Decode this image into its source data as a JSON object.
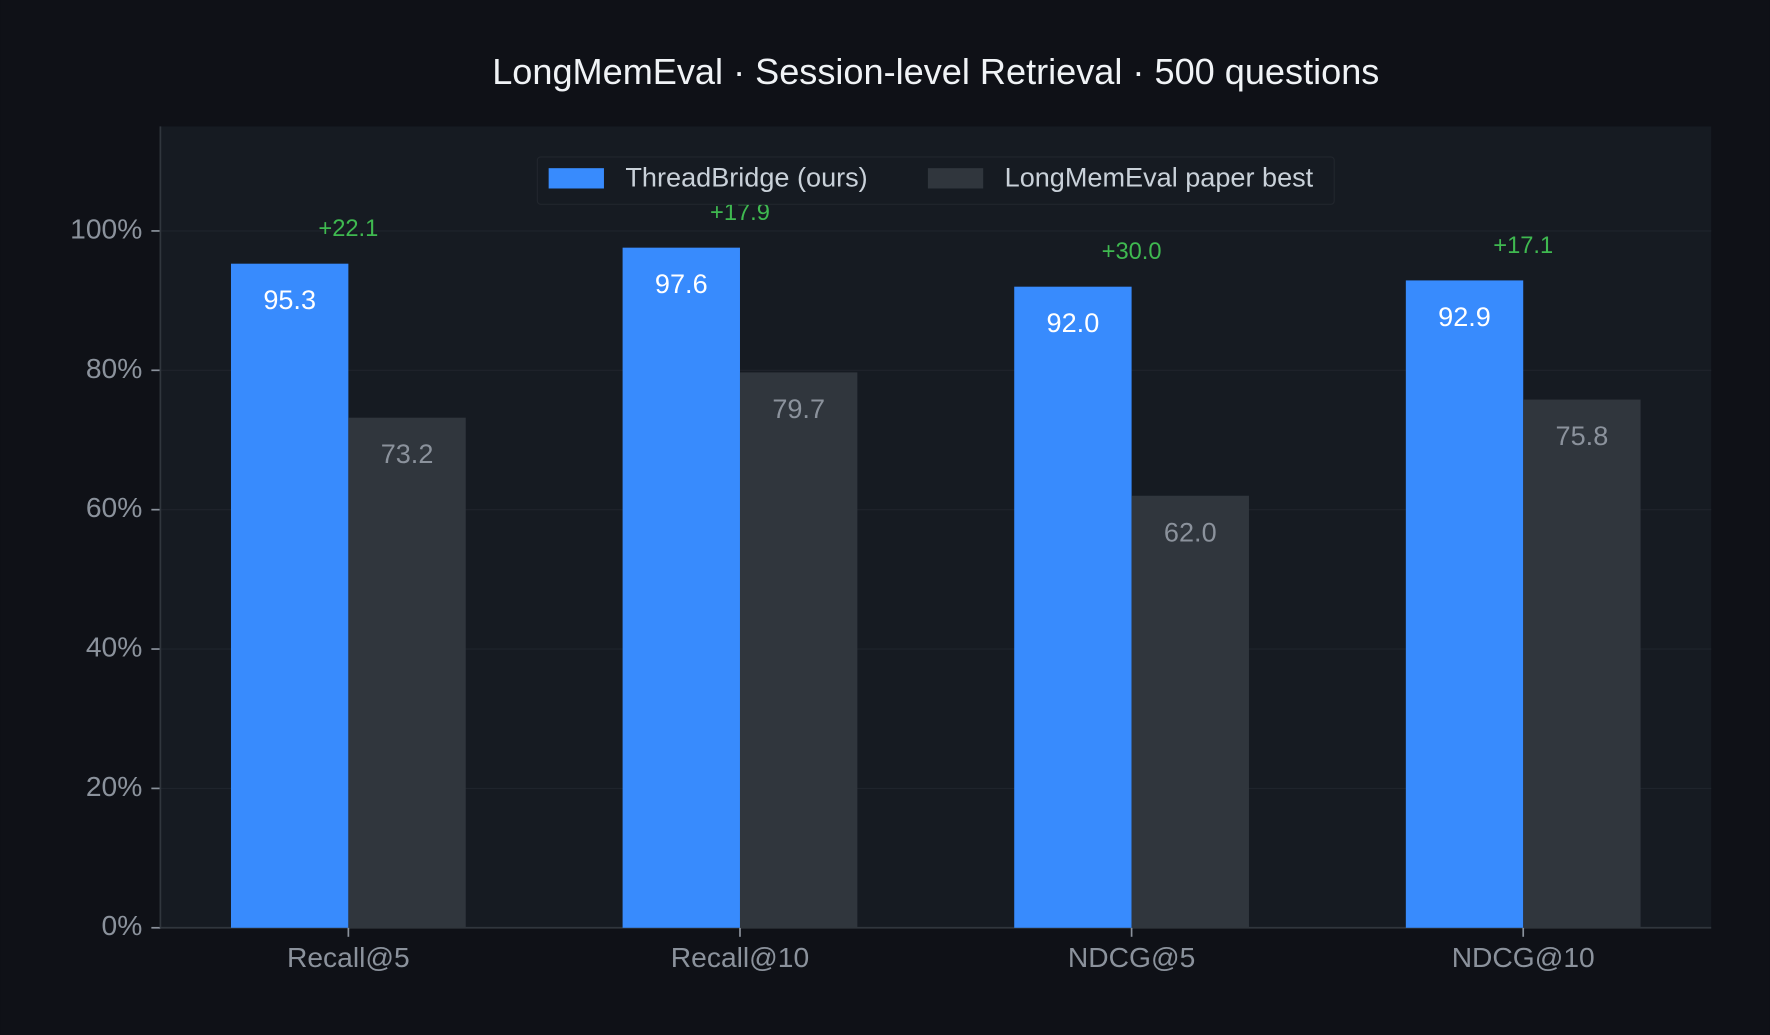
{
  "chart_data": {
    "type": "bar",
    "title": "LongMemEval  ·  Session-level Retrieval  ·  500 questions",
    "categories": [
      "Recall@5",
      "Recall@10",
      "NDCG@5",
      "NDCG@10"
    ],
    "series": [
      {
        "name": "ThreadBridge (ours)",
        "color": "#388bfd",
        "values": [
          95.3,
          97.6,
          92.0,
          92.9
        ],
        "value_labels": [
          "95.3",
          "97.6",
          "92.0",
          "92.9"
        ]
      },
      {
        "name": "LongMemEval paper best",
        "color": "#30363d",
        "values": [
          73.2,
          79.7,
          62.0,
          75.8
        ],
        "value_labels": [
          "73.2",
          "79.7",
          "62.0",
          "75.8"
        ]
      }
    ],
    "annotations": [
      "+22.1",
      "+17.9",
      "+30.0",
      "+17.1"
    ],
    "annotation_color": "#3fb950",
    "ylim": [
      0,
      115
    ],
    "yticks": [
      {
        "value": 0,
        "label": "0%"
      },
      {
        "value": 20,
        "label": "20%"
      },
      {
        "value": 40,
        "label": "40%"
      },
      {
        "value": 60,
        "label": "60%"
      },
      {
        "value": 80,
        "label": "80%"
      },
      {
        "value": 100,
        "label": "100%"
      }
    ],
    "grid": true,
    "legend": "top"
  }
}
